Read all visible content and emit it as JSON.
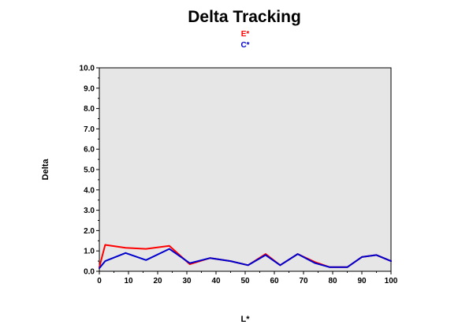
{
  "chart_data": {
    "type": "line",
    "title": "Delta Tracking",
    "xlabel": "L*",
    "ylabel": "Delta",
    "xlim": [
      0,
      100
    ],
    "ylim": [
      0,
      10
    ],
    "x_ticks": [
      "0",
      "10",
      "20",
      "30",
      "40",
      "50",
      "60",
      "70",
      "80",
      "90",
      "100"
    ],
    "y_ticks": [
      "0.0",
      "1.0",
      "2.0",
      "3.0",
      "4.0",
      "5.0",
      "6.0",
      "7.0",
      "8.0",
      "9.0",
      "10.0"
    ],
    "grid": false,
    "legend_position": "top-center",
    "plot_background": "#e6e6e6",
    "series": [
      {
        "name": "E*",
        "color": "#ff0000",
        "x": [
          0,
          2,
          9,
          16,
          24,
          31,
          38,
          45,
          51,
          57,
          62,
          68,
          74,
          79,
          85,
          90,
          95,
          100
        ],
        "y": [
          0.2,
          1.3,
          1.15,
          1.1,
          1.25,
          0.35,
          0.65,
          0.5,
          0.3,
          0.85,
          0.3,
          0.85,
          0.45,
          0.2,
          0.2,
          0.7,
          0.8,
          0.5
        ]
      },
      {
        "name": "C*",
        "color": "#0000cc",
        "x": [
          0,
          2,
          9,
          16,
          24,
          31,
          38,
          45,
          51,
          57,
          62,
          68,
          74,
          79,
          85,
          90,
          95,
          100
        ],
        "y": [
          0.15,
          0.5,
          0.9,
          0.55,
          1.1,
          0.4,
          0.65,
          0.5,
          0.3,
          0.8,
          0.3,
          0.85,
          0.4,
          0.2,
          0.2,
          0.7,
          0.8,
          0.5
        ]
      }
    ]
  }
}
